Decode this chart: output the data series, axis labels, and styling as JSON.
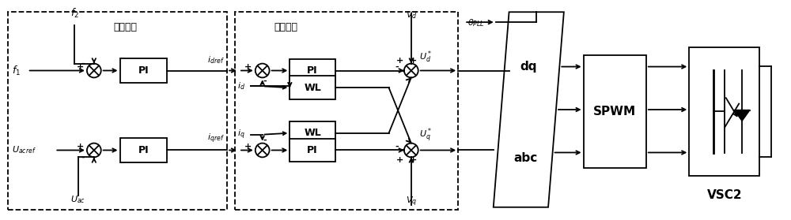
{
  "fig_width": 10.0,
  "fig_height": 2.79,
  "dpi": 100,
  "bg_color": "#ffffff",
  "line_color": "#000000",
  "labels": {
    "f2": "$f_2$",
    "f1": "$f_1$",
    "Uacref": "$U_{acref}$",
    "Uac": "$U_{ac}$",
    "idref": "$i_{dref}$",
    "id": "$i_d$",
    "iq": "$i_q$",
    "iqref": "$i_{qref}$",
    "Vd": "$V_d$",
    "Vq": "$V_q$",
    "Ud_star": "$U_d^*$",
    "Uq_star": "$U_q^*$",
    "theta_PLL": "$\\theta_{PLL}$",
    "outer_ctrl": "外环控制",
    "inner_ctrl": "内环控制",
    "SPWM": "SPWM",
    "VSC2": "VSC2"
  }
}
